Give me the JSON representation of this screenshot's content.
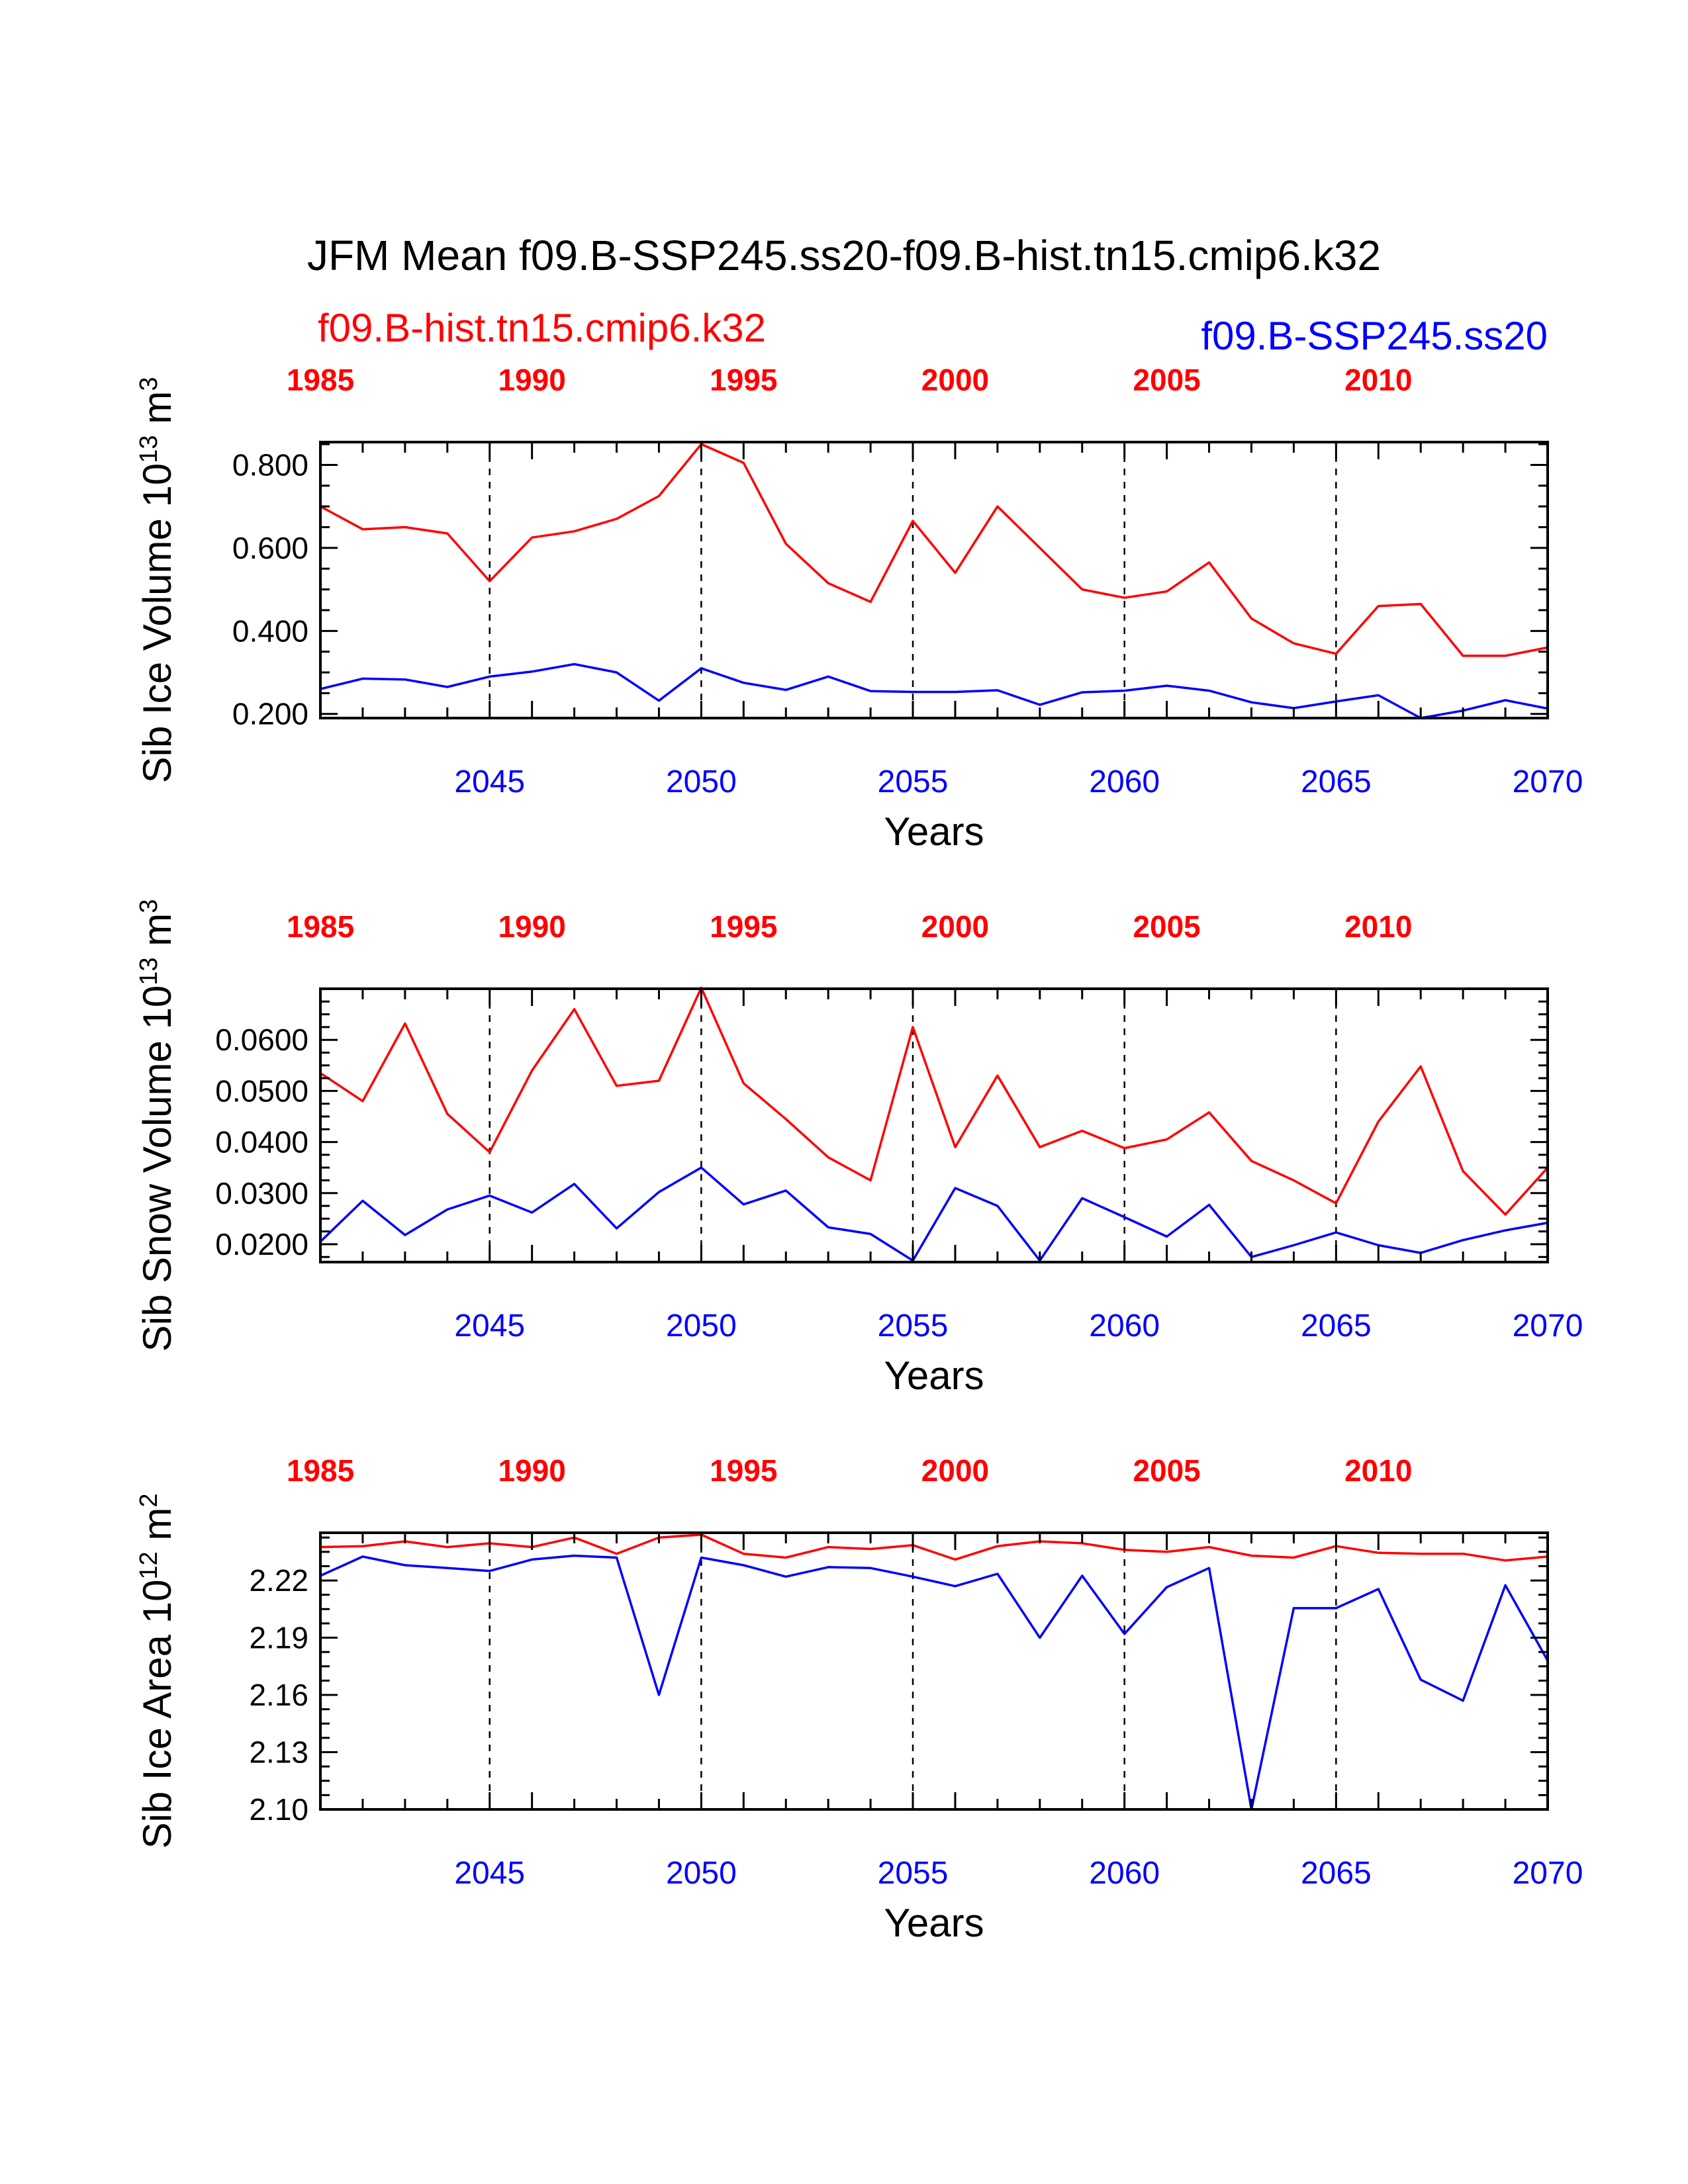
{
  "title": "JFM Mean f09.B-SSP245.ss20-f09.B-hist.tn15.cmip6.k32",
  "run_left": "f09.B-hist.tn15.cmip6.k32",
  "run_right": "f09.B-SSP245.ss20",
  "colors": {
    "historical": "#ff0000",
    "ssp245": "#0000ff",
    "axis": "#000000"
  },
  "chart_data": [
    {
      "type": "line",
      "ylabel": "Sib Ice Volume 10",
      "ylabel_exp": "13",
      "ylabel_unit": " m",
      "ylabel_unit_exp": "3",
      "xlabel": "Years",
      "xlim": [
        2041,
        2070
      ],
      "ylim": [
        0.19,
        0.855
      ],
      "yticks": [
        0.2,
        0.4,
        0.6,
        0.8
      ],
      "ytick_labels": [
        "0.200",
        "0.400",
        "0.600",
        "0.800"
      ],
      "xticks": [
        2045,
        2050,
        2055,
        2060,
        2065,
        2070
      ],
      "xtick_labels": [
        "2045",
        "2050",
        "2055",
        "2060",
        "2065",
        "2070"
      ],
      "top_ticks": [
        2041,
        2046,
        2051,
        2056,
        2061,
        2066
      ],
      "top_tick_labels": [
        "1985",
        "1990",
        "1995",
        "2000",
        "2005",
        "2010"
      ],
      "x": [
        2041,
        2042,
        2043,
        2044,
        2045,
        2046,
        2047,
        2048,
        2049,
        2050,
        2051,
        2052,
        2053,
        2054,
        2055,
        2056,
        2057,
        2058,
        2059,
        2060,
        2061,
        2062,
        2063,
        2064,
        2065,
        2066,
        2067,
        2068,
        2069,
        2070
      ],
      "series": [
        {
          "color": "#ff0000",
          "values": [
            0.7,
            0.645,
            0.65,
            0.635,
            0.52,
            0.625,
            0.64,
            0.67,
            0.725,
            0.85,
            0.805,
            0.61,
            0.515,
            0.47,
            0.665,
            0.54,
            0.7,
            0.6,
            0.5,
            0.48,
            0.495,
            0.565,
            0.43,
            0.37,
            0.345,
            0.46,
            0.465,
            0.34,
            0.34,
            0.36
          ]
        },
        {
          "color": "#0000ff",
          "values": [
            0.26,
            0.285,
            0.283,
            0.265,
            0.29,
            0.302,
            0.32,
            0.3,
            0.232,
            0.31,
            0.275,
            0.258,
            0.29,
            0.255,
            0.253,
            0.253,
            0.257,
            0.222,
            0.252,
            0.256,
            0.268,
            0.256,
            0.228,
            0.214,
            0.23,
            0.245,
            0.19,
            0.208,
            0.233,
            0.213
          ]
        }
      ]
    },
    {
      "type": "line",
      "ylabel": "Sib Snow Volume 10",
      "ylabel_exp": "13",
      "ylabel_unit": " m",
      "ylabel_unit_exp": "3",
      "xlabel": "Years",
      "xlim": [
        2041,
        2070
      ],
      "ylim": [
        0.0165,
        0.07
      ],
      "yticks": [
        0.02,
        0.03,
        0.04,
        0.05,
        0.06
      ],
      "ytick_labels": [
        "0.0200",
        "0.0300",
        "0.0400",
        "0.0500",
        "0.0600"
      ],
      "xticks": [
        2045,
        2050,
        2055,
        2060,
        2065,
        2070
      ],
      "xtick_labels": [
        "2045",
        "2050",
        "2055",
        "2060",
        "2065",
        "2070"
      ],
      "top_ticks": [
        2041,
        2046,
        2051,
        2056,
        2061,
        2066
      ],
      "top_tick_labels": [
        "1985",
        "1990",
        "1995",
        "2000",
        "2005",
        "2010"
      ],
      "x": [
        2041,
        2042,
        2043,
        2044,
        2045,
        2046,
        2047,
        2048,
        2049,
        2050,
        2051,
        2052,
        2053,
        2054,
        2055,
        2056,
        2057,
        2058,
        2059,
        2060,
        2061,
        2062,
        2063,
        2064,
        2065,
        2066,
        2067,
        2068,
        2069,
        2070
      ],
      "series": [
        {
          "color": "#ff0000",
          "values": [
            0.0535,
            0.048,
            0.0632,
            0.0455,
            0.038,
            0.054,
            0.066,
            0.051,
            0.052,
            0.0702,
            0.0515,
            0.0445,
            0.037,
            0.0325,
            0.0625,
            0.039,
            0.053,
            0.039,
            0.0422,
            0.0388,
            0.0405,
            0.0458,
            0.0363,
            0.0325,
            0.028,
            0.044,
            0.0548,
            0.0343,
            0.0258,
            0.035
          ]
        },
        {
          "color": "#0000ff",
          "values": [
            0.0205,
            0.0285,
            0.0218,
            0.0268,
            0.0295,
            0.0262,
            0.0318,
            0.0231,
            0.0302,
            0.035,
            0.0278,
            0.0305,
            0.0233,
            0.022,
            0.0168,
            0.031,
            0.0275,
            0.0168,
            0.029,
            0.0253,
            0.0215,
            0.0277,
            0.0175,
            0.0198,
            0.0223,
            0.0198,
            0.0183,
            0.0208,
            0.0227,
            0.0242
          ]
        }
      ]
    },
    {
      "type": "line",
      "ylabel": "Sib Ice Area 10",
      "ylabel_exp": "12",
      "ylabel_unit": " m",
      "ylabel_unit_exp": "2",
      "xlabel": "Years",
      "xlim": [
        2041,
        2070
      ],
      "ylim": [
        2.1,
        2.245
      ],
      "yticks": [
        2.1,
        2.13,
        2.16,
        2.19,
        2.22
      ],
      "ytick_labels": [
        "2.10",
        "2.13",
        "2.16",
        "2.19",
        "2.22"
      ],
      "xticks": [
        2045,
        2050,
        2055,
        2060,
        2065,
        2070
      ],
      "xtick_labels": [
        "2045",
        "2050",
        "2055",
        "2060",
        "2065",
        "2070"
      ],
      "top_ticks": [
        2041,
        2046,
        2051,
        2056,
        2061,
        2066
      ],
      "top_tick_labels": [
        "1985",
        "1990",
        "1995",
        "2000",
        "2005",
        "2010"
      ],
      "x": [
        2041,
        2042,
        2043,
        2044,
        2045,
        2046,
        2047,
        2048,
        2049,
        2050,
        2051,
        2052,
        2053,
        2054,
        2055,
        2056,
        2057,
        2058,
        2059,
        2060,
        2061,
        2062,
        2063,
        2064,
        2065,
        2066,
        2067,
        2068,
        2069,
        2070
      ],
      "series": [
        {
          "color": "#ff0000",
          "values": [
            2.2375,
            2.238,
            2.2405,
            2.2375,
            2.2395,
            2.2375,
            2.2425,
            2.234,
            2.2425,
            2.244,
            2.234,
            2.232,
            2.2375,
            2.2365,
            2.2385,
            2.231,
            2.238,
            2.2405,
            2.2395,
            2.236,
            2.235,
            2.2375,
            2.233,
            2.232,
            2.238,
            2.2345,
            2.234,
            2.234,
            2.2305,
            2.2325
          ]
        },
        {
          "color": "#0000ff",
          "values": [
            2.2225,
            2.2325,
            2.228,
            2.2265,
            2.225,
            2.231,
            2.233,
            2.232,
            2.16,
            2.232,
            2.228,
            2.222,
            2.227,
            2.2265,
            2.222,
            2.217,
            2.2235,
            2.19,
            2.2225,
            2.192,
            2.2165,
            2.2265,
            2.1,
            2.2055,
            2.2055,
            2.2155,
            2.168,
            2.157,
            2.2175,
            2.178
          ]
        }
      ]
    }
  ]
}
